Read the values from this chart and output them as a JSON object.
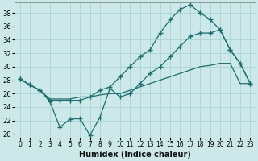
{
  "xlabel": "Humidex (Indice chaleur)",
  "ylabel": "",
  "background_color": "#cce8e8",
  "grid_color": "#aad4d4",
  "line_color": "#1a6e6e",
  "xlim": [
    -0.5,
    23.5
  ],
  "ylim": [
    19.5,
    39.5
  ],
  "yticks": [
    20,
    22,
    24,
    26,
    28,
    30,
    32,
    34,
    36,
    38
  ],
  "xticks": [
    0,
    1,
    2,
    3,
    4,
    5,
    6,
    7,
    8,
    9,
    10,
    11,
    12,
    13,
    14,
    15,
    16,
    17,
    18,
    19,
    20,
    21,
    22,
    23
  ],
  "line_zigzag_x": [
    0,
    1,
    2,
    3,
    4,
    5,
    6,
    7,
    8,
    9,
    10,
    11,
    12,
    13,
    14,
    15,
    16,
    17,
    18,
    19,
    20,
    21,
    22,
    23
  ],
  "line_zigzag_y": [
    28.2,
    27.3,
    26.5,
    24.8,
    21.0,
    22.2,
    22.3,
    19.8,
    22.5,
    26.8,
    25.5,
    26.0,
    27.5,
    29.0,
    30.0,
    31.5,
    33.0,
    34.5,
    35.0,
    35.0,
    35.5,
    32.5,
    30.5,
    27.5
  ],
  "line_straight_x": [
    0,
    1,
    2,
    3,
    4,
    5,
    6,
    7,
    8,
    9,
    10,
    11,
    12,
    13,
    14,
    15,
    16,
    17,
    18,
    19,
    20,
    21,
    22,
    23
  ],
  "line_straight_y": [
    28.2,
    27.3,
    26.5,
    25.2,
    25.2,
    25.2,
    25.5,
    25.5,
    25.8,
    26.0,
    26.0,
    26.5,
    27.0,
    27.5,
    28.0,
    28.5,
    29.0,
    29.5,
    30.0,
    30.2,
    30.5,
    30.5,
    27.5,
    27.5
  ],
  "line_peak_x": [
    0,
    1,
    2,
    3,
    4,
    5,
    6,
    7,
    8,
    9,
    10,
    11,
    12,
    13,
    14,
    15,
    16,
    17,
    18,
    19,
    20,
    21,
    22,
    23
  ],
  "line_peak_y": [
    28.2,
    27.3,
    26.5,
    25.0,
    25.0,
    25.0,
    25.0,
    25.5,
    26.5,
    27.0,
    28.5,
    30.0,
    31.5,
    32.5,
    35.0,
    37.0,
    38.5,
    39.2,
    38.0,
    37.0,
    35.5,
    32.5,
    30.5,
    27.5
  ]
}
